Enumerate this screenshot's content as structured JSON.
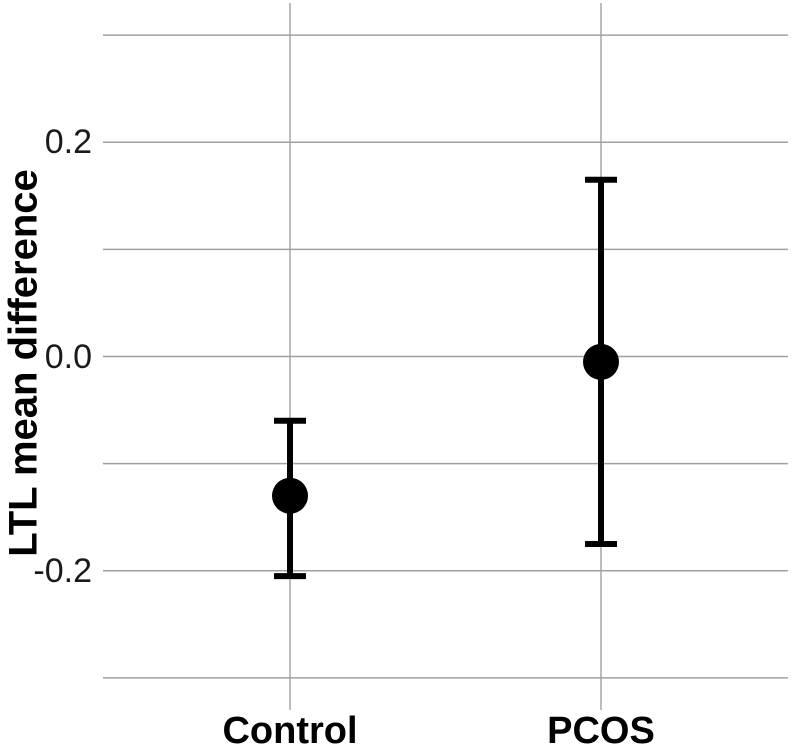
{
  "chart_data": {
    "type": "scatter",
    "mark": "pointrange",
    "title": "",
    "xlabel": "",
    "ylabel": "LTL mean difference",
    "categories": [
      "Control",
      "PCOS"
    ],
    "series": [
      {
        "name": "LTL mean difference",
        "points": [
          {
            "category": "Control",
            "mean": -0.13,
            "ci_low": -0.205,
            "ci_high": -0.06
          },
          {
            "category": "PCOS",
            "mean": -0.005,
            "ci_low": -0.175,
            "ci_high": 0.165
          }
        ]
      }
    ],
    "ylim": [
      -0.33,
      0.33
    ],
    "yticks": [
      {
        "value": 0.2,
        "label": "0.2"
      },
      {
        "value": 0.0,
        "label": "0.0"
      },
      {
        "value": -0.2,
        "label": "-0.2"
      }
    ],
    "gridline_values": [
      0.3,
      0.2,
      0.1,
      0.0,
      -0.1,
      -0.2,
      -0.3
    ],
    "grid": true,
    "legend_position": "none",
    "colors": {
      "point": "#000000",
      "error_bar": "#000000",
      "gridline": "#a0a0a0",
      "tick_label": "#1a1a1a",
      "axis_label": "#000000",
      "background": "#ffffff"
    }
  }
}
